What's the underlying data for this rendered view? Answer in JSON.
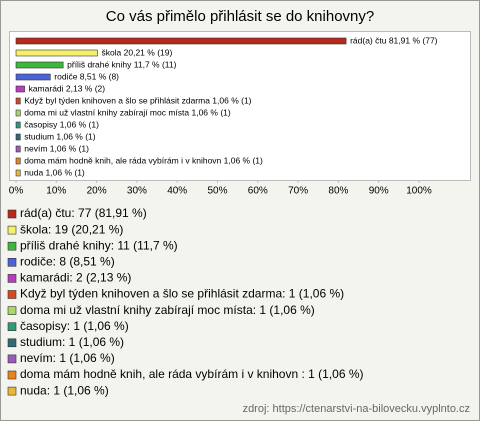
{
  "chart_data": {
    "type": "bar",
    "orientation": "horizontal",
    "title": "Co vás přimělo přihlásit se do knihovny?",
    "categories": [
      "rád(a) čtu",
      "škola",
      "příliš drahé knihy",
      "rodiče",
      "kamarádi",
      "Když byl týden knihoven a šlo se přihlásit zdarma",
      "doma mi už vlastní knihy zabírají moc místa",
      "časopisy",
      "studium",
      "nevím",
      "doma mám hodně knih, ale ráda vybírám i v knihovn",
      "nuda"
    ],
    "values": [
      81.91,
      20.21,
      11.7,
      8.51,
      2.13,
      1.06,
      1.06,
      1.06,
      1.06,
      1.06,
      1.06,
      1.06
    ],
    "counts": [
      77,
      19,
      11,
      8,
      2,
      1,
      1,
      1,
      1,
      1,
      1,
      1
    ],
    "value_labels": [
      "rád(a) čtu 81,91 % (77)",
      "škola 20,21 % (19)",
      "příliš drahé knihy 11,7 % (11)",
      "rodiče 8,51 % (8)",
      "kamarádi 2,13 % (2)",
      "Když byl týden knihoven a šlo se přihlásit zdarma 1,06 % (1)",
      "doma mi už vlastní knihy zabírají moc místa 1,06 % (1)",
      "časopisy 1,06 % (1)",
      "studium 1,06 % (1)",
      "nevím 1,06 % (1)",
      "doma mám hodně knih, ale ráda vybírám i v knihovn  1,06 % (1)",
      "nuda 1,06 % (1)"
    ],
    "legend_labels": [
      "rád(a) čtu: 77 (81,91 %)",
      "škola: 19 (20,21 %)",
      "příliš drahé knihy: 11 (11,7 %)",
      "rodiče: 8 (8,51 %)",
      "kamarádi: 2 (2,13 %)",
      "Když byl týden knihoven a šlo se přihlásit zdarma: 1 (1,06 %)",
      "doma mi už vlastní knihy zabírají moc místa: 1 (1,06 %)",
      "časopisy: 1 (1,06 %)",
      "studium: 1 (1,06 %)",
      "nevím: 1 (1,06 %)",
      "doma mám hodně knih, ale ráda vybírám i v knihovn : 1 (1,06 %)",
      "nuda: 1 (1,06 %)"
    ],
    "colors": [
      "#b8281c",
      "#f5f06a",
      "#3cb93c",
      "#4a63d8",
      "#b83cc0",
      "#d8481e",
      "#a8d86a",
      "#2f9a78",
      "#2f6a78",
      "#9a5ab8",
      "#e8841e",
      "#e8b83c"
    ],
    "xlim": [
      0,
      100
    ],
    "xticks": [
      {
        "value": 0,
        "label": "0%"
      },
      {
        "value": 10,
        "label": "10%"
      },
      {
        "value": 20,
        "label": "20%"
      },
      {
        "value": 30,
        "label": "30%"
      },
      {
        "value": 40,
        "label": "40%"
      },
      {
        "value": 50,
        "label": "50%"
      },
      {
        "value": 60,
        "label": "60%"
      },
      {
        "value": 70,
        "label": "70%"
      },
      {
        "value": 80,
        "label": "80%"
      },
      {
        "value": 90,
        "label": "90%"
      },
      {
        "value": 100,
        "label": "100%"
      }
    ],
    "grid": false,
    "source": "zdroj: https://ctenarstvi-na-bilovecku.vyplnto.cz"
  }
}
